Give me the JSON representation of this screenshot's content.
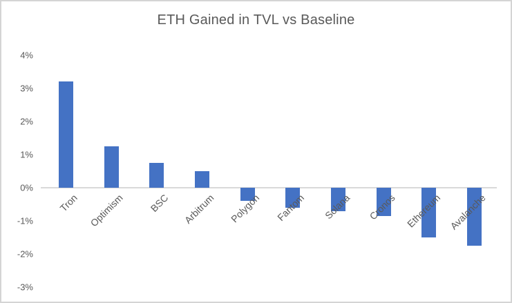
{
  "chart_data": {
    "type": "bar",
    "title": "ETH Gained in TVL vs Baseline",
    "categories": [
      "Tron",
      "Optimism",
      "BSC",
      "Arbitrum",
      "Polygon",
      "Fantom",
      "Solana",
      "Cronos",
      "Ethereum",
      "Avalanche"
    ],
    "values": [
      3.2,
      1.25,
      0.75,
      0.5,
      -0.4,
      -0.6,
      -0.7,
      -0.85,
      -1.5,
      -1.75
    ],
    "unit": "%",
    "xlabel": "",
    "ylabel": "",
    "y_ticks": [
      4,
      3,
      2,
      1,
      0,
      -1,
      -2,
      -3
    ],
    "y_tick_labels": [
      "4%",
      "3%",
      "2%",
      "1%",
      "0%",
      "-1%",
      "-2%",
      "-3%"
    ],
    "ylim": [
      -3,
      4
    ],
    "grid": false,
    "legend": false,
    "category_label_rotation_deg": 45,
    "bar_color": "#4472C4",
    "axis_line_color": "#D9D9D9",
    "text_color": "#595959",
    "title_color": "#595959",
    "background": "#FFFFFF",
    "border_color": "#D4D4D4"
  }
}
